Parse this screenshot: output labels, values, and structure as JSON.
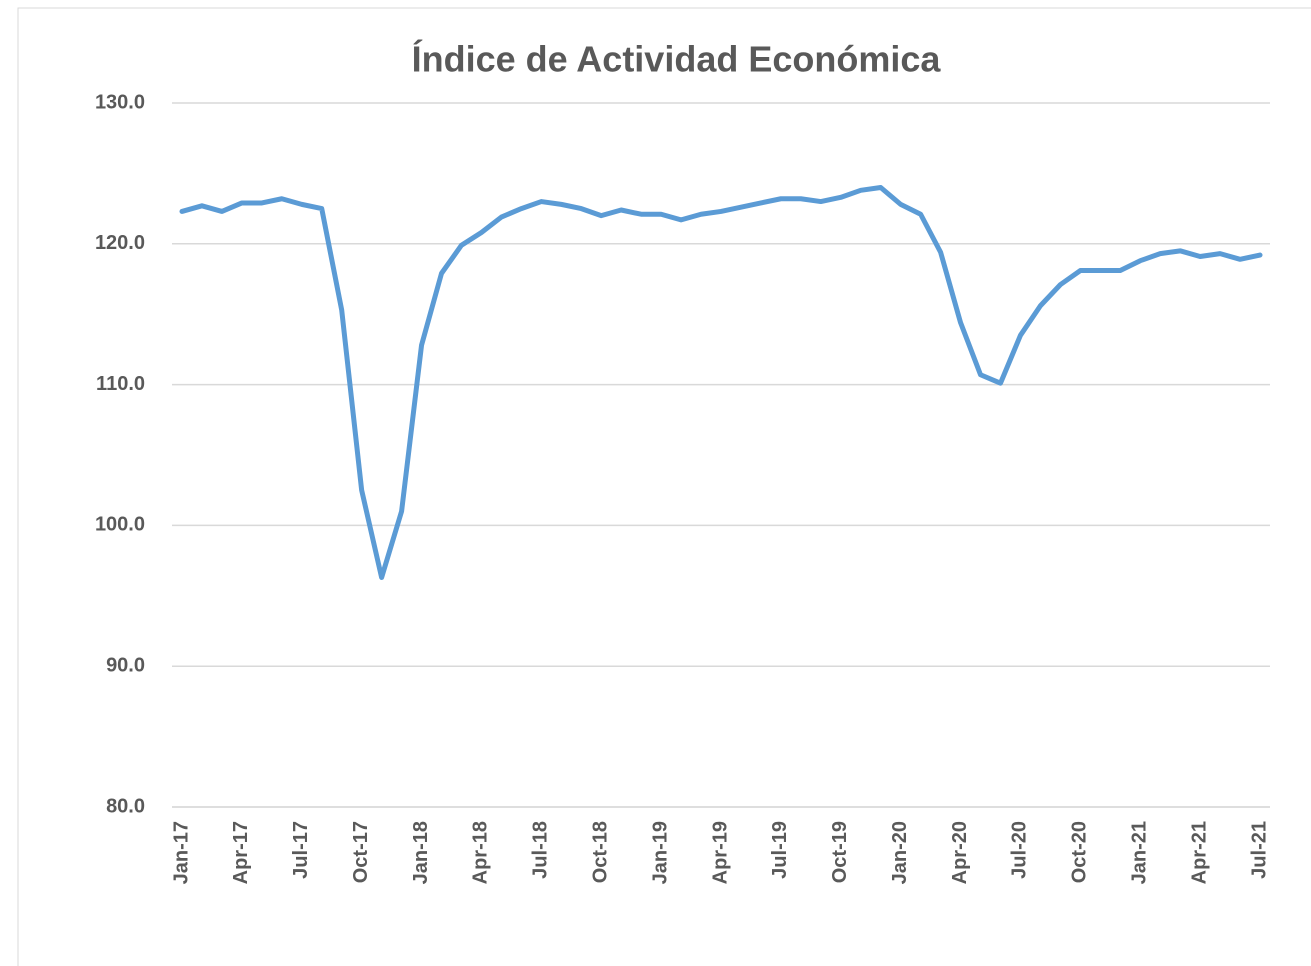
{
  "chart_data": {
    "type": "line",
    "title": "Índice de Actividad Económica",
    "categories": [
      "Jan-17",
      null,
      null,
      "Apr-17",
      null,
      null,
      "Jul-17",
      null,
      null,
      "Oct-17",
      null,
      null,
      "Jan-18",
      null,
      null,
      "Apr-18",
      null,
      null,
      "Jul-18",
      null,
      null,
      "Oct-18",
      null,
      null,
      "Jan-19",
      null,
      null,
      "Apr-19",
      null,
      null,
      "Jul-19",
      null,
      null,
      "Oct-19",
      null,
      null,
      "Jan-20",
      null,
      null,
      "Apr-20",
      null,
      null,
      "Jul-20",
      null,
      null,
      "Oct-20",
      null,
      null,
      "Jan-21",
      null,
      null,
      "Apr-21",
      null,
      null,
      "Jul-21"
    ],
    "series": [
      {
        "name": "Índice de Actividad Económica",
        "color": "#5b9bd5",
        "values": [
          122.3,
          122.7,
          122.3,
          122.9,
          122.9,
          123.2,
          122.8,
          122.5,
          115.3,
          102.5,
          96.3,
          101.0,
          112.8,
          117.9,
          119.9,
          120.8,
          121.9,
          122.5,
          123.0,
          122.8,
          122.5,
          122.0,
          122.4,
          122.1,
          122.1,
          121.7,
          122.1,
          122.3,
          122.6,
          122.9,
          123.2,
          123.2,
          123.0,
          123.3,
          123.8,
          124.0,
          122.8,
          122.1,
          119.4,
          114.4,
          110.7,
          110.1,
          113.5,
          115.6,
          117.1,
          118.1,
          118.1,
          118.1,
          118.8,
          119.3,
          119.5,
          119.1,
          119.3,
          118.9,
          119.2
        ]
      }
    ],
    "ylim": [
      80,
      130
    ],
    "yticks": [
      {
        "value": 80,
        "label": "80.0"
      },
      {
        "value": 90,
        "label": "90.0"
      },
      {
        "value": 100,
        "label": "100.0"
      },
      {
        "value": 110,
        "label": "110.0"
      },
      {
        "value": 120,
        "label": "120.0"
      },
      {
        "value": 130,
        "label": "130.0"
      }
    ],
    "grid": true
  }
}
